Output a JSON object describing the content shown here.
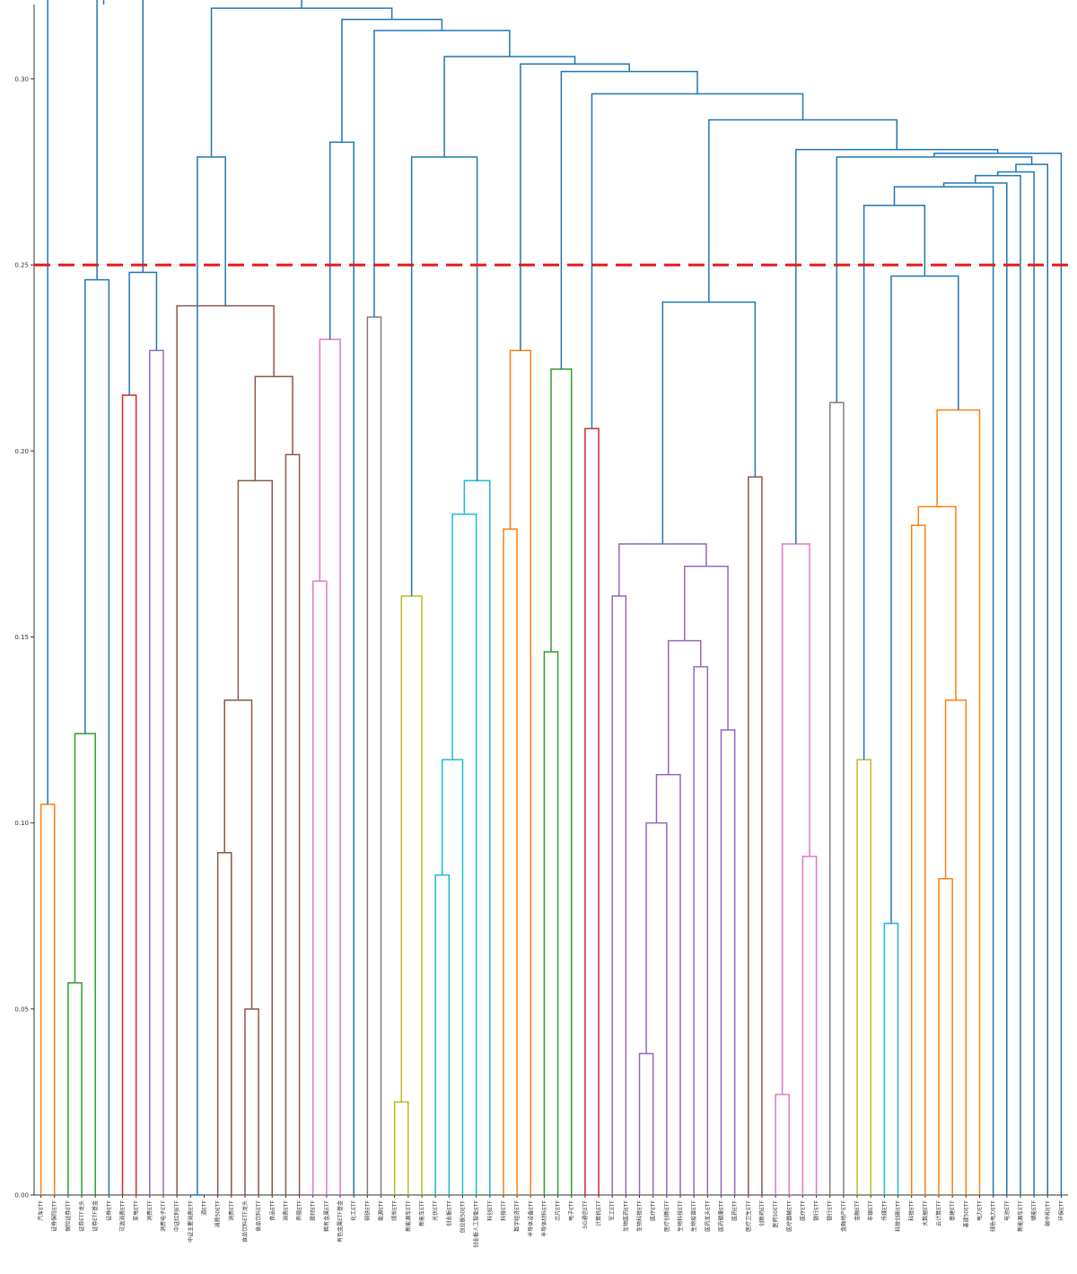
{
  "chart_data": {
    "type": "dendrogram",
    "title": "",
    "xlabel": "",
    "ylabel": "",
    "ylim": [
      0,
      0.32
    ],
    "yticks": [
      "0.00",
      "0.05",
      "0.10",
      "0.15",
      "0.20",
      "0.25",
      "0.30"
    ],
    "ytick_values": [
      0.0,
      0.05,
      0.1,
      0.15,
      0.2,
      0.25,
      0.3
    ],
    "threshold": 0.25,
    "threshold_color": "#e41a1c",
    "above_threshold_color": "#1f77b4",
    "cluster_colors": [
      "#ff7f0e",
      "#2ca02c",
      "#d62728",
      "#9467bd",
      "#8c564b",
      "#e377c2",
      "#7f7f7f",
      "#bcbd22",
      "#17becf"
    ],
    "leaves": [
      "汽车ETF",
      "证券保险ETF",
      "保险证券ETF",
      "证券ETF龙头",
      "证券ETF基金",
      "证券ETF",
      "可选消费ETF",
      "家电ETF",
      "消费ETF",
      "消费电子ETF",
      "中证红利ETF",
      "中证主要消费ETF",
      "酒ETF",
      "消费50ETF",
      "消费ETF",
      "食品饮料ETF龙头",
      "食品饮料ETF",
      "食品ETF",
      "消费ETF",
      "养殖ETF",
      "建材ETF",
      "稀有金属ETF",
      "有色金属ETF基金",
      "化工ETF",
      "钢铁ETF",
      "能源ETF",
      "煤炭ETF",
      "新能源车ETF",
      "新能车ETF",
      "光伏ETF",
      "创业板ETF",
      "创业板50ETF",
      "创业板人工智能ETF",
      "科创ETF",
      "科技ETF",
      "数字经济ETF",
      "半导体设备ETF",
      "半导体材料ETF",
      "芯片ETF",
      "电子ETF",
      "5G通信ETF",
      "计算机ETF",
      "军工ETF",
      "生物医药ETF",
      "生物科技ETF",
      "医疗ETF",
      "医疗创新ETF",
      "生物科技ETF",
      "生物疫苗ETF",
      "医药龙头ETF",
      "医药健康ETF",
      "医药ETF",
      "医疗卫生ETF",
      "创新药ETF",
      "医药50ETF",
      "医疗器械ETF",
      "医疗ETF",
      "银行ETF",
      "银行ETF",
      "金融地产ETF",
      "金融ETF",
      "非银ETF",
      "传媒ETF",
      "科技创新ETF",
      "科技ETF",
      "大数据ETF",
      "云计算ETF",
      "基建ETF",
      "基建50ETF",
      "电力ETF",
      "绿色电力ETF",
      "电池ETF",
      "新能源车ETF",
      "储能ETF",
      "碳中和ETF",
      "环保ETF"
    ],
    "merges": [
      [
        0,
        1,
        0.105,
        "#ff7f0e"
      ],
      [
        2,
        3,
        0.057,
        "#2ca02c"
      ],
      [
        4,
        77,
        0.124,
        "#2ca02c"
      ],
      [
        5,
        78,
        0.246,
        "#1f77b4"
      ],
      [
        6,
        7,
        0.215,
        "#d62728"
      ],
      [
        8,
        9,
        0.227,
        "#9467bd"
      ],
      [
        80,
        81,
        0.248,
        "#1f77b4"
      ],
      [
        11,
        12,
        0.0,
        "#1f77b4"
      ],
      [
        13,
        14,
        0.092,
        "#8c564b"
      ],
      [
        15,
        16,
        0.05,
        "#8c564b"
      ],
      [
        84,
        85,
        0.133,
        "#8c564b"
      ],
      [
        17,
        86,
        0.192,
        "#8c564b"
      ],
      [
        18,
        19,
        0.199,
        "#8c564b"
      ],
      [
        87,
        88,
        0.22,
        "#8c564b"
      ],
      [
        10,
        89,
        0.239,
        "#8c564b"
      ],
      [
        83,
        90,
        0.279,
        "#1f77b4"
      ],
      [
        20,
        21,
        0.165,
        "#e377c2"
      ],
      [
        22,
        92,
        0.23,
        "#e377c2"
      ],
      [
        93,
        23,
        0.283,
        "#1f77b4"
      ],
      [
        24,
        25,
        0.236,
        "#7f7f7f"
      ],
      [
        26,
        27,
        0.025,
        "#bcbd22"
      ],
      [
        28,
        96,
        0.161,
        "#bcbd22"
      ],
      [
        29,
        30,
        0.086,
        "#17becf"
      ],
      [
        31,
        98,
        0.117,
        "#17becf"
      ],
      [
        32,
        99,
        0.183,
        "#17becf"
      ],
      [
        33,
        100,
        0.192,
        "#17becf"
      ],
      [
        97,
        101,
        0.279,
        "#1f77b4"
      ],
      [
        34,
        35,
        0.179,
        "#ff7f0e"
      ],
      [
        36,
        103,
        0.227,
        "#ff7f0e"
      ],
      [
        37,
        38,
        0.146,
        "#2ca02c"
      ],
      [
        39,
        105,
        0.222,
        "#2ca02c"
      ],
      [
        40,
        41,
        0.206,
        "#d62728"
      ],
      [
        42,
        43,
        0.161,
        "#9467bd"
      ],
      [
        44,
        45,
        0.038,
        "#9467bd"
      ],
      [
        46,
        109,
        0.1,
        "#9467bd"
      ],
      [
        47,
        110,
        0.113,
        "#9467bd"
      ],
      [
        48,
        49,
        0.142,
        "#9467bd"
      ],
      [
        111,
        112,
        0.149,
        "#9467bd"
      ],
      [
        50,
        51,
        0.125,
        "#9467bd"
      ],
      [
        114,
        113,
        0.169,
        "#9467bd"
      ],
      [
        108,
        115,
        0.175,
        "#9467bd"
      ],
      [
        52,
        53,
        0.193,
        "#8c564b"
      ],
      [
        116,
        117,
        0.24,
        "#1f77b4"
      ],
      [
        54,
        55,
        0.027,
        "#e377c2"
      ],
      [
        56,
        57,
        0.091,
        "#e377c2"
      ],
      [
        119,
        120,
        0.175,
        "#e377c2"
      ],
      [
        58,
        59,
        0.213,
        "#7f7f7f"
      ],
      [
        60,
        61,
        0.117,
        "#bcbd22"
      ],
      [
        62,
        63,
        0.073,
        "#17becf"
      ],
      [
        64,
        65,
        0.18,
        "#ff7f0e"
      ],
      [
        66,
        67,
        0.085,
        "#ff7f0e"
      ],
      [
        68,
        126,
        0.133,
        "#ff7f0e"
      ],
      [
        125,
        127,
        0.185,
        "#ff7f0e"
      ],
      [
        128,
        69,
        0.211,
        "#ff7f0e"
      ],
      [
        124,
        129,
        0.247,
        "#1f77b4"
      ],
      [
        123,
        130,
        0.266,
        "#1f77b4"
      ],
      [
        131,
        70,
        0.271,
        "#1f77b4"
      ],
      [
        132,
        71,
        0.272,
        "#1f77b4"
      ],
      [
        133,
        72,
        0.274,
        "#1f77b4"
      ],
      [
        134,
        73,
        0.275,
        "#1f77b4"
      ],
      [
        135,
        74,
        0.277,
        "#1f77b4"
      ],
      [
        136,
        122,
        0.279,
        "#1f77b4"
      ],
      [
        137,
        75,
        0.28,
        "#1f77b4"
      ],
      [
        138,
        121,
        0.281,
        "#1f77b4"
      ],
      [
        118,
        139,
        0.289,
        "#1f77b4"
      ],
      [
        107,
        140,
        0.296,
        "#1f77b4"
      ],
      [
        106,
        141,
        0.302,
        "#1f77b4"
      ],
      [
        142,
        104,
        0.304,
        "#1f77b4"
      ],
      [
        143,
        102,
        0.306,
        "#1f77b4"
      ],
      [
        95,
        144,
        0.313,
        "#1f77b4"
      ],
      [
        94,
        145,
        0.316,
        "#1f77b4"
      ],
      [
        91,
        146,
        0.319,
        "#1f77b4"
      ],
      [
        82,
        147,
        0.322,
        "#1f77b4"
      ],
      [
        148,
        79,
        0.327,
        "#1f77b4"
      ],
      [
        149,
        76,
        0.33,
        "#1f77b4"
      ]
    ]
  }
}
